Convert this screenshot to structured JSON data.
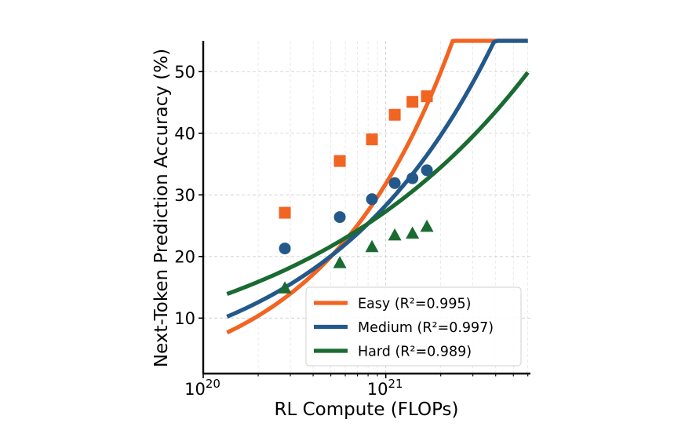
{
  "chart_data": {
    "type": "line",
    "title": "",
    "xlabel": "RL Compute (FLOPs)",
    "ylabel": "Next-Token Prediction Accuracy (%)",
    "xscale": "log",
    "xlim": [
      1e+20,
      6.2e+21
    ],
    "ylim": [
      1,
      55
    ],
    "grid": true,
    "legend_position": "lower-right",
    "x_ticks": [
      {
        "value": 1e+20,
        "base": "10",
        "exp": "20"
      },
      {
        "value": 1e+21,
        "base": "10",
        "exp": "21"
      }
    ],
    "y_ticks": [
      10,
      20,
      30,
      40,
      50
    ],
    "series": [
      {
        "name": "Easy (R²=0.995)",
        "color": "#f26422",
        "marker": "square",
        "points": [
          {
            "x": 2.8e+20,
            "y": 27.1
          },
          {
            "x": 5.6e+20,
            "y": 35.5
          },
          {
            "x": 8.4e+20,
            "y": 39.0
          },
          {
            "x": 1.12e+21,
            "y": 43.0
          },
          {
            "x": 1.4e+21,
            "y": 45.1
          },
          {
            "x": 1.68e+21,
            "y": 46.0
          }
        ],
        "fit": {
          "a": 4.2e+20,
          "b": 0.615,
          "c": -2.3,
          "x_range": [
            1.35e+20,
            6e+21
          ]
        }
      },
      {
        "name": "Medium (R²=0.997)",
        "color": "#23598a",
        "marker": "circle",
        "points": [
          {
            "x": 2.8e+20,
            "y": 21.3
          },
          {
            "x": 5.6e+20,
            "y": 26.4
          },
          {
            "x": 8.4e+20,
            "y": 29.3
          },
          {
            "x": 1.12e+21,
            "y": 31.9
          },
          {
            "x": 1.4e+21,
            "y": 32.7
          },
          {
            "x": 1.68e+21,
            "y": 34.0
          }
        ],
        "fit": {
          "a": 4.3e+20,
          "b": 0.468,
          "c": -1.4,
          "x_range": [
            1.35e+20,
            6e+21
          ]
        }
      },
      {
        "name": "Hard (R²=0.989)",
        "color": "#1a6b32",
        "marker": "triangle",
        "points": [
          {
            "x": 2.8e+20,
            "y": 14.9
          },
          {
            "x": 5.6e+20,
            "y": 19.0
          },
          {
            "x": 8.4e+20,
            "y": 21.6
          },
          {
            "x": 1.12e+21,
            "y": 23.5
          },
          {
            "x": 1.4e+21,
            "y": 23.8
          },
          {
            "x": 1.68e+21,
            "y": 24.9
          }
        ],
        "fit": {
          "a": 3.9e+20,
          "b": 0.335,
          "c": -0.1,
          "x_range": [
            1.35e+20,
            6e+21
          ]
        }
      }
    ]
  }
}
